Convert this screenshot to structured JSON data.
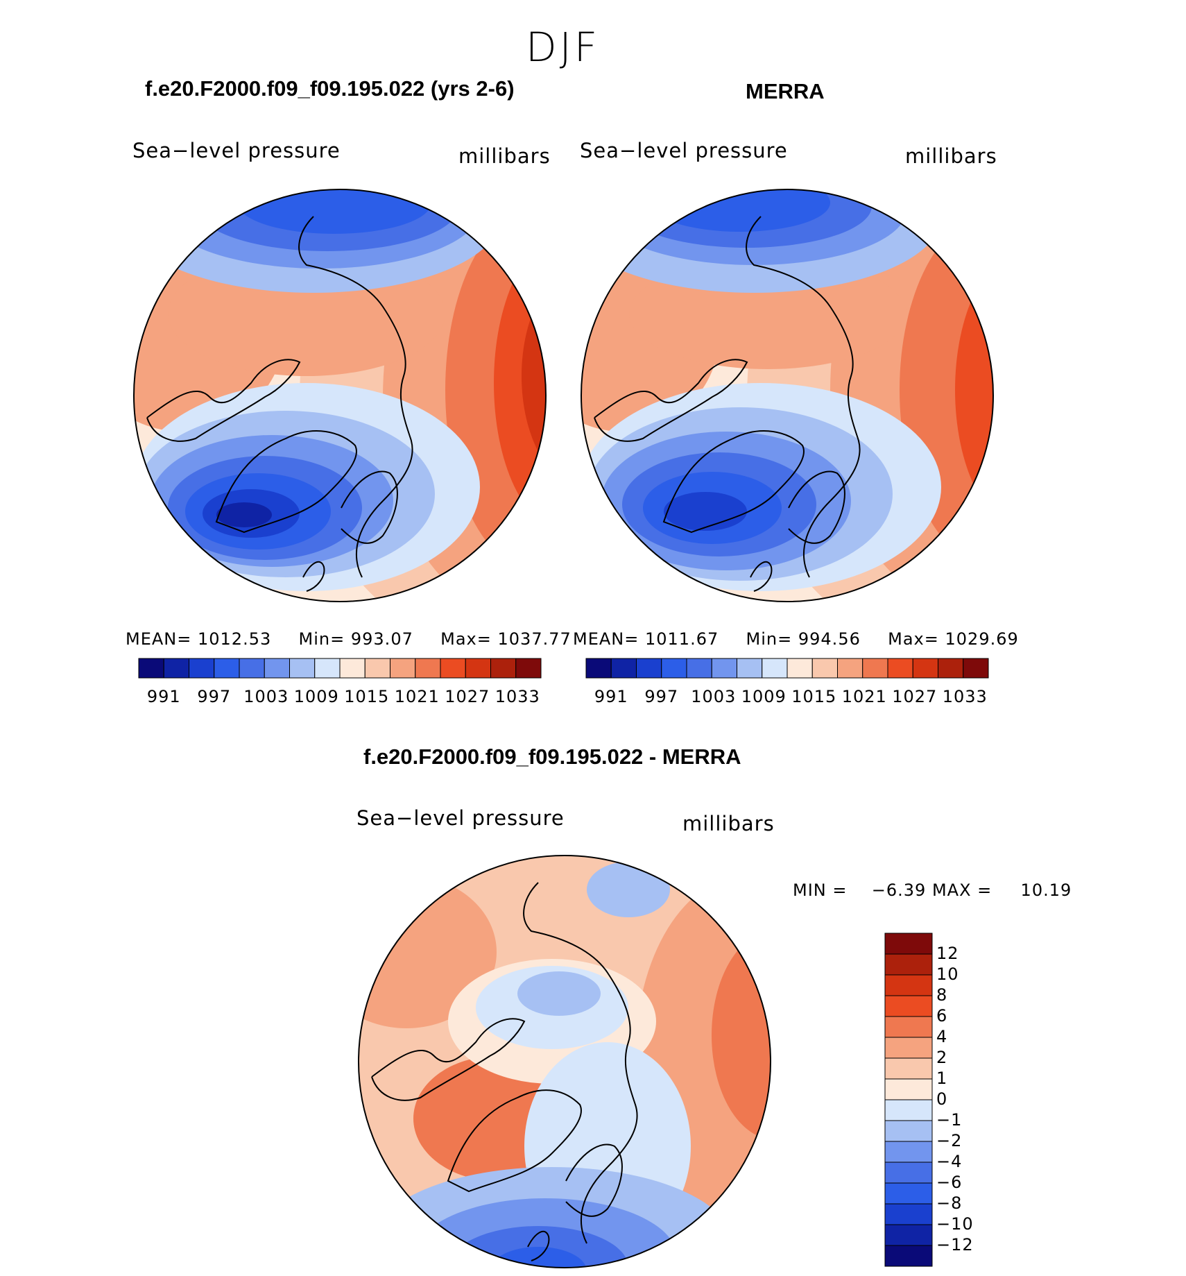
{
  "figure": {
    "season": "DJF"
  },
  "panels": {
    "model": {
      "header": "f.e20.F2000.f09_f09.195.022 (yrs 2-6)",
      "variable": "Sea−level pressure",
      "units": "millibars",
      "stats": {
        "mean_label": "MEAN=",
        "mean": "1012.53",
        "min_label": "Min=",
        "min": "993.07",
        "max_label": "Max=",
        "max": "1037.77"
      }
    },
    "obs": {
      "header": "MERRA",
      "variable": "Sea−level pressure",
      "units": "millibars",
      "stats": {
        "mean_label": "MEAN=",
        "mean": "1011.67",
        "min_label": "Min=",
        "min": "994.56",
        "max_label": "Max=",
        "max": "1029.69"
      }
    },
    "diff": {
      "header": "f.e20.F2000.f09_f09.195.022 - MERRA",
      "variable": "Sea−level pressure",
      "units": "millibars",
      "stats": {
        "min_label": "MIN =",
        "min": "−6.39",
        "max_label": "MAX =",
        "max": "10.19"
      }
    }
  },
  "colors": {
    "slp_scale": [
      "#0a0a78",
      "#0f23a5",
      "#1a40cf",
      "#2c5ee8",
      "#476fe6",
      "#7295ee",
      "#a6c0f3",
      "#d6e6fb",
      "#fde9da",
      "#f9c8ad",
      "#f5a37f",
      "#ef7850",
      "#eb4c22",
      "#d43512",
      "#ac210c",
      "#7e0a0a"
    ],
    "diff_scale": [
      "#7e0a0a",
      "#ac210c",
      "#d43512",
      "#eb4c22",
      "#ef7850",
      "#f5a37f",
      "#f9c8ad",
      "#fde9da",
      "#d6e6fb",
      "#a6c0f3",
      "#7295ee",
      "#476fe6",
      "#2c5ee8",
      "#1a40cf",
      "#0f23a5",
      "#0a0a78"
    ],
    "coastline": "#000000"
  },
  "chart_data": [
    {
      "type": "heatmap",
      "title": "f.e20.F2000.f09_f09.195.022 (yrs 2-6)",
      "subtitle": "Sea−level pressure",
      "units": "millibars",
      "projection": "north polar stereographic",
      "levels": [
        991,
        994,
        997,
        1000,
        1003,
        1006,
        1009,
        1012,
        1015,
        1018,
        1021,
        1024,
        1027,
        1030,
        1033
      ],
      "colorbar_labels": [
        "991",
        "997",
        "1003",
        "1009",
        "1015",
        "1021",
        "1027",
        "1033"
      ],
      "mean": 1012.53,
      "min": 993.07,
      "max": 1037.77
    },
    {
      "type": "heatmap",
      "title": "MERRA",
      "subtitle": "Sea−level pressure",
      "units": "millibars",
      "projection": "north polar stereographic",
      "levels": [
        991,
        994,
        997,
        1000,
        1003,
        1006,
        1009,
        1012,
        1015,
        1018,
        1021,
        1024,
        1027,
        1030,
        1033
      ],
      "colorbar_labels": [
        "991",
        "997",
        "1003",
        "1009",
        "1015",
        "1021",
        "1027",
        "1033"
      ],
      "mean": 1011.67,
      "min": 994.56,
      "max": 1029.69
    },
    {
      "type": "heatmap",
      "title": "f.e20.F2000.f09_f09.195.022 - MERRA",
      "subtitle": "Sea−level pressure",
      "units": "millibars",
      "projection": "north polar stereographic",
      "levels": [
        12,
        10,
        8,
        6,
        4,
        2,
        1,
        0,
        -1,
        -2,
        -4,
        -6,
        -8,
        -10,
        -12
      ],
      "colorbar_labels": [
        "12",
        "10",
        "8",
        "6",
        "4",
        "2",
        "1",
        "0",
        "−1",
        "−2",
        "−4",
        "−6",
        "−8",
        "−10",
        "−12"
      ],
      "min": -6.39,
      "max": 10.19
    }
  ]
}
